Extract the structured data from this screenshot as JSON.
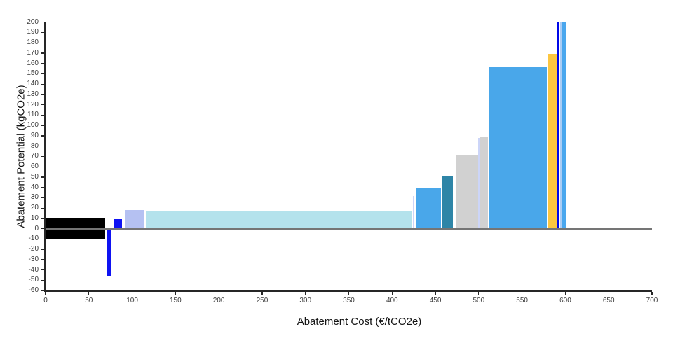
{
  "chart_data": {
    "type": "bar",
    "title": "",
    "xlabel": "Abatement Cost (€/tCO2e)",
    "ylabel": "Abatement Potential (kgCO2e)",
    "xlim": [
      0,
      700
    ],
    "ylim": [
      -60,
      200
    ],
    "x_ticks": [
      0,
      50,
      100,
      150,
      200,
      250,
      300,
      350,
      400,
      450,
      500,
      550,
      600,
      650,
      700
    ],
    "y_ticks": [
      200,
      190,
      180,
      170,
      160,
      150,
      140,
      130,
      120,
      110,
      100,
      90,
      80,
      70,
      60,
      50,
      40,
      30,
      20,
      10,
      0,
      -10,
      -20,
      -30,
      -40,
      -50,
      -60
    ],
    "grid": false,
    "legend": false,
    "zero_line": true,
    "colors": {
      "zero_line": "#757575",
      "axis": "#262626",
      "tick_labels": "#3a3a3a"
    },
    "bars": [
      {
        "x0": 0,
        "x1": 68.5,
        "y0": -10,
        "y1": 10,
        "color": "#000000"
      },
      {
        "x0": 71.5,
        "x1": 76,
        "y0": -46,
        "y1": 0,
        "color": "#0f13f2"
      },
      {
        "x0": 79,
        "x1": 88.5,
        "y0": 0,
        "y1": 9.5,
        "color": "#0f13f2"
      },
      {
        "x0": 92.5,
        "x1": 113,
        "y0": 0,
        "y1": 18,
        "color": "#b5c1f2"
      },
      {
        "x0": 115.5,
        "x1": 423,
        "y0": 0,
        "y1": 17,
        "color": "#b4e2ec"
      },
      {
        "x0": 424,
        "x1": 426,
        "y0": 0,
        "y1": 32,
        "color": "#ccd5f8"
      },
      {
        "x0": 427.5,
        "x1": 456.5,
        "y0": 0,
        "y1": 39.5,
        "color": "#49a7ea"
      },
      {
        "x0": 457.5,
        "x1": 470,
        "y0": 0,
        "y1": 51,
        "color": "#2e85a7"
      },
      {
        "x0": 473.5,
        "x1": 499,
        "y0": 0,
        "y1": 71.5,
        "color": "#d1d1d1"
      },
      {
        "x0": 499.5,
        "x1": 501,
        "y0": 0,
        "y1": 88,
        "color": "#ccd5f8"
      },
      {
        "x0": 501.5,
        "x1": 511,
        "y0": 0,
        "y1": 89,
        "color": "#d1d1d1"
      },
      {
        "x0": 512.5,
        "x1": 578.5,
        "y0": 0,
        "y1": 156.5,
        "color": "#49a7ea"
      },
      {
        "x0": 580,
        "x1": 590.5,
        "y0": 0,
        "y1": 169.5,
        "color": "#fcc640"
      },
      {
        "x0": 591,
        "x1": 593.5,
        "y0": 0,
        "y1": 200,
        "color": "#0008e8"
      },
      {
        "x0": 594.3,
        "x1": 595.8,
        "y0": 0,
        "y1": 200,
        "color": "#abcdf5"
      },
      {
        "x0": 595.8,
        "x1": 601.5,
        "y0": 0,
        "y1": 200,
        "color": "#4aa7ee"
      }
    ]
  }
}
